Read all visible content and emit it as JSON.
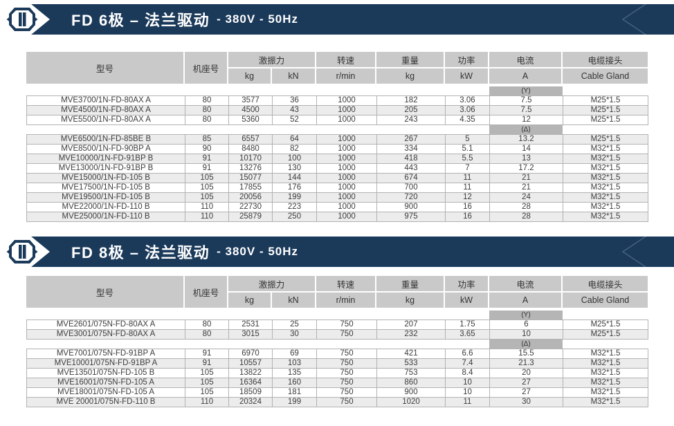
{
  "colors": {
    "navy": "#1b3a5a",
    "chev": "#47607c",
    "header-bg": "#c9c9c9",
    "marker-bg": "#b5b5b5",
    "stripe": "#ececec",
    "border": "#b2b2b2",
    "text": "#3c3c3c",
    "header-text": "#333333"
  },
  "banners": [
    {
      "title_main": "FD 6极 – 法兰驱动",
      "title_sub": "- 380V - 50Hz"
    },
    {
      "title_main": "FD 8极 – 法兰驱动",
      "title_sub": "- 380V - 50Hz"
    }
  ],
  "header": {
    "model": "型号",
    "frame": "机座号",
    "force": "激振力",
    "force_kg": "kg",
    "force_kn": "kN",
    "speed": "转速",
    "speed_unit": "r/min",
    "weight": "重量",
    "weight_unit": "kg",
    "power": "功率",
    "power_unit": "kW",
    "current": "电流",
    "current_unit": "A",
    "gland": "电缆接头",
    "gland_unit": "Cable Gland"
  },
  "tables": [
    {
      "groups": [
        {
          "marker": "(Y)",
          "rows": [
            [
              "MVE3700/1N-FD-80AX A",
              "80",
              "3577",
              "36",
              "1000",
              "182",
              "3.06",
              "7.5",
              "M25*1.5"
            ],
            [
              "MVE4500/1N-FD-80AX A",
              "80",
              "4500",
              "43",
              "1000",
              "205",
              "3.06",
              "7.5",
              "M25*1.5"
            ],
            [
              "MVE5500/1N-FD-80AX A",
              "80",
              "5360",
              "52",
              "1000",
              "243",
              "4.35",
              "12",
              "M25*1.5"
            ]
          ]
        },
        {
          "marker": "(Δ)",
          "rows": [
            [
              "MVE6500/1N-FD-85BE B",
              "85",
              "6557",
              "64",
              "1000",
              "267",
              "5",
              "13.2",
              "M25*1.5"
            ],
            [
              "MVE8500/1N-FD-90BP A",
              "90",
              "8480",
              "82",
              "1000",
              "334",
              "5.1",
              "14",
              "M32*1.5"
            ],
            [
              "MVE10000/1N-FD-91BP B",
              "91",
              "10170",
              "100",
              "1000",
              "418",
              "5.5",
              "13",
              "M32*1.5"
            ],
            [
              "MVE13000/1N-FD-91BP B",
              "91",
              "13276",
              "130",
              "1000",
              "443",
              "7",
              "17.2",
              "M32*1.5"
            ],
            [
              "MVE15000/1N-FD-105 B",
              "105",
              "15077",
              "144",
              "1000",
              "674",
              "11",
              "21",
              "M32*1.5"
            ],
            [
              "MVE17500/1N-FD-105 B",
              "105",
              "17855",
              "176",
              "1000",
              "700",
              "11",
              "21",
              "M32*1.5"
            ],
            [
              "MVE19500/1N-FD-105 B",
              "105",
              "20056",
              "199",
              "1000",
              "720",
              "12",
              "24",
              "M32*1.5"
            ],
            [
              "MVE22000/1N-FD-110 B",
              "110",
              "22730",
              "223",
              "1000",
              "900",
              "16",
              "28",
              "M32*1.5"
            ],
            [
              "MVE25000/1N-FD-110 B",
              "110",
              "25879",
              "250",
              "1000",
              "975",
              "16",
              "28",
              "M32*1.5"
            ]
          ]
        }
      ]
    },
    {
      "groups": [
        {
          "marker": "(Y)",
          "rows": [
            [
              "MVE2601/075N-FD-80AX A",
              "80",
              "2531",
              "25",
              "750",
              "207",
              "1.75",
              "6",
              "M25*1.5"
            ],
            [
              "MVE3001/075N-FD-80AX A",
              "80",
              "3015",
              "30",
              "750",
              "232",
              "3.65",
              "10",
              "M25*1.5"
            ]
          ]
        },
        {
          "marker": "(Δ)",
          "rows": [
            [
              "MVE7001/075N-FD-91BP A",
              "91",
              "6970",
              "69",
              "750",
              "421",
              "6.6",
              "15.5",
              "M32*1.5"
            ],
            [
              "MVE10001/075N-FD-91BP A",
              "91",
              "10557",
              "103",
              "750",
              "533",
              "7.4",
              "21.3",
              "M32*1.5"
            ],
            [
              "MVE13501/075N-FD-105 B",
              "105",
              "13822",
              "135",
              "750",
              "753",
              "8.4",
              "20",
              "M32*1.5"
            ],
            [
              "MVE16001/075N-FD-105 A",
              "105",
              "16364",
              "160",
              "750",
              "860",
              "10",
              "27",
              "M32*1.5"
            ],
            [
              "MVE18001/075N-FD-105 A",
              "105",
              "18509",
              "181",
              "750",
              "900",
              "10",
              "27",
              "M32*1.5"
            ],
            [
              "MVE 20001/075N-FD-110 B",
              "110",
              "20324",
              "199",
              "750",
              "1020",
              "11",
              "30",
              "M32*1.5"
            ]
          ]
        }
      ]
    }
  ]
}
